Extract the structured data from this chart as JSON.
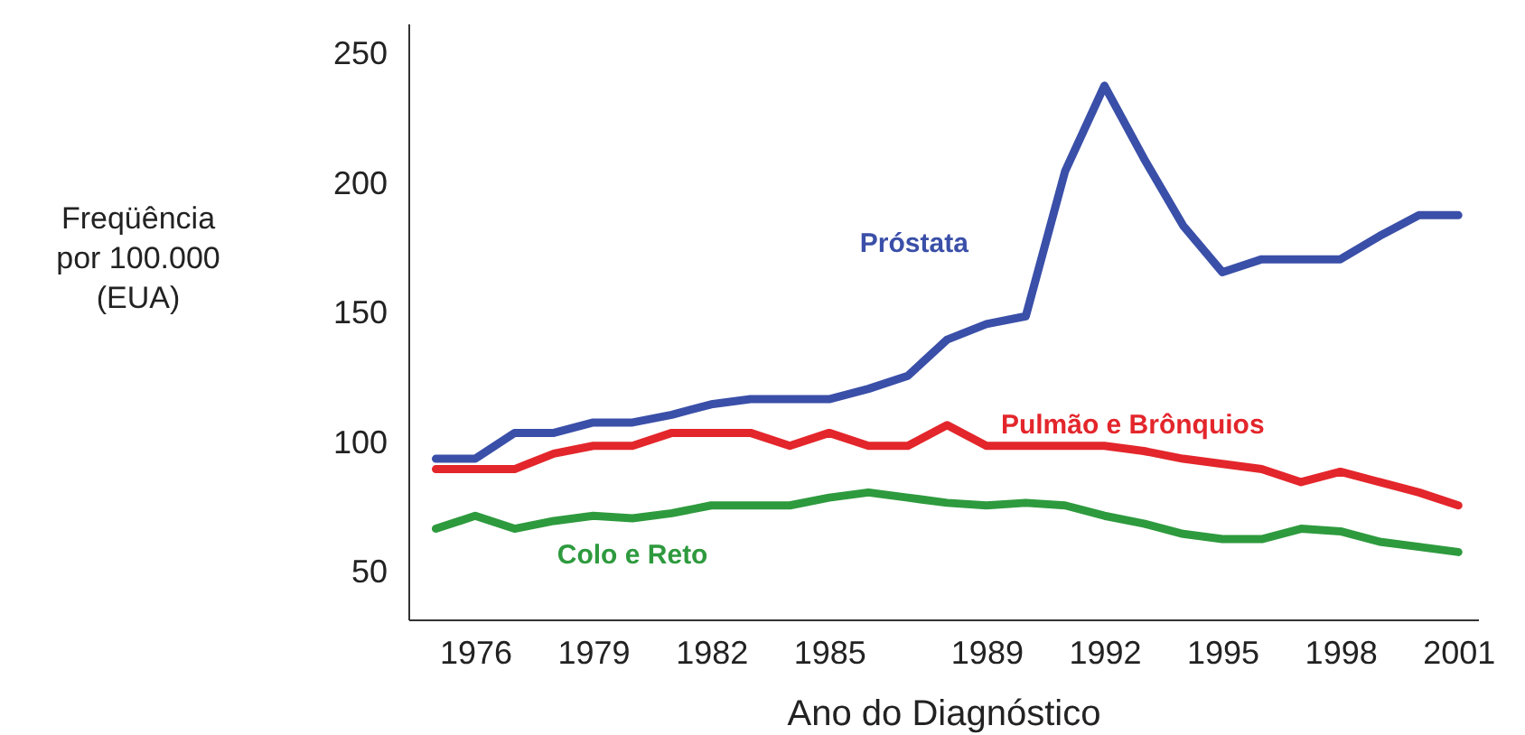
{
  "chart_data": {
    "type": "line",
    "xlabel": "Ano do Diagnóstico",
    "ylabel": "Freqüência\npor 100.000\n(EUA)",
    "x": [
      1975,
      1976,
      1977,
      1978,
      1979,
      1980,
      1981,
      1982,
      1983,
      1984,
      1985,
      1986,
      1987,
      1988,
      1989,
      1990,
      1991,
      1992,
      1993,
      1994,
      1995,
      1996,
      1997,
      1998,
      1999,
      2000,
      2001
    ],
    "series": [
      {
        "name": "Próstata",
        "color": "#3a4fa8",
        "values": [
          94,
          94,
          104,
          104,
          108,
          108,
          111,
          115,
          117,
          117,
          117,
          121,
          126,
          140,
          146,
          149,
          205,
          238,
          210,
          184,
          166,
          171,
          171,
          171,
          180,
          188,
          188
        ]
      },
      {
        "name": "Pulmão e Brônquios",
        "color": "#e3262b",
        "values": [
          90,
          90,
          90,
          96,
          99,
          99,
          104,
          104,
          104,
          99,
          104,
          99,
          99,
          107,
          99,
          99,
          99,
          99,
          97,
          94,
          92,
          90,
          85,
          89,
          85,
          81,
          76
        ]
      },
      {
        "name": "Colo e Reto",
        "color": "#2e9a3e",
        "values": [
          67,
          72,
          67,
          70,
          72,
          71,
          73,
          76,
          76,
          76,
          79,
          81,
          79,
          77,
          76,
          77,
          76,
          72,
          69,
          65,
          63,
          63,
          67,
          66,
          62,
          60,
          58
        ]
      }
    ],
    "xlim": [
      1974.3,
      2001.5
    ],
    "ylim": [
      32,
      262
    ],
    "xticks": [
      1976,
      1979,
      1982,
      1985,
      1989,
      1992,
      1995,
      1998,
      2001
    ],
    "yticks": [
      50,
      100,
      150,
      200,
      250
    ]
  }
}
